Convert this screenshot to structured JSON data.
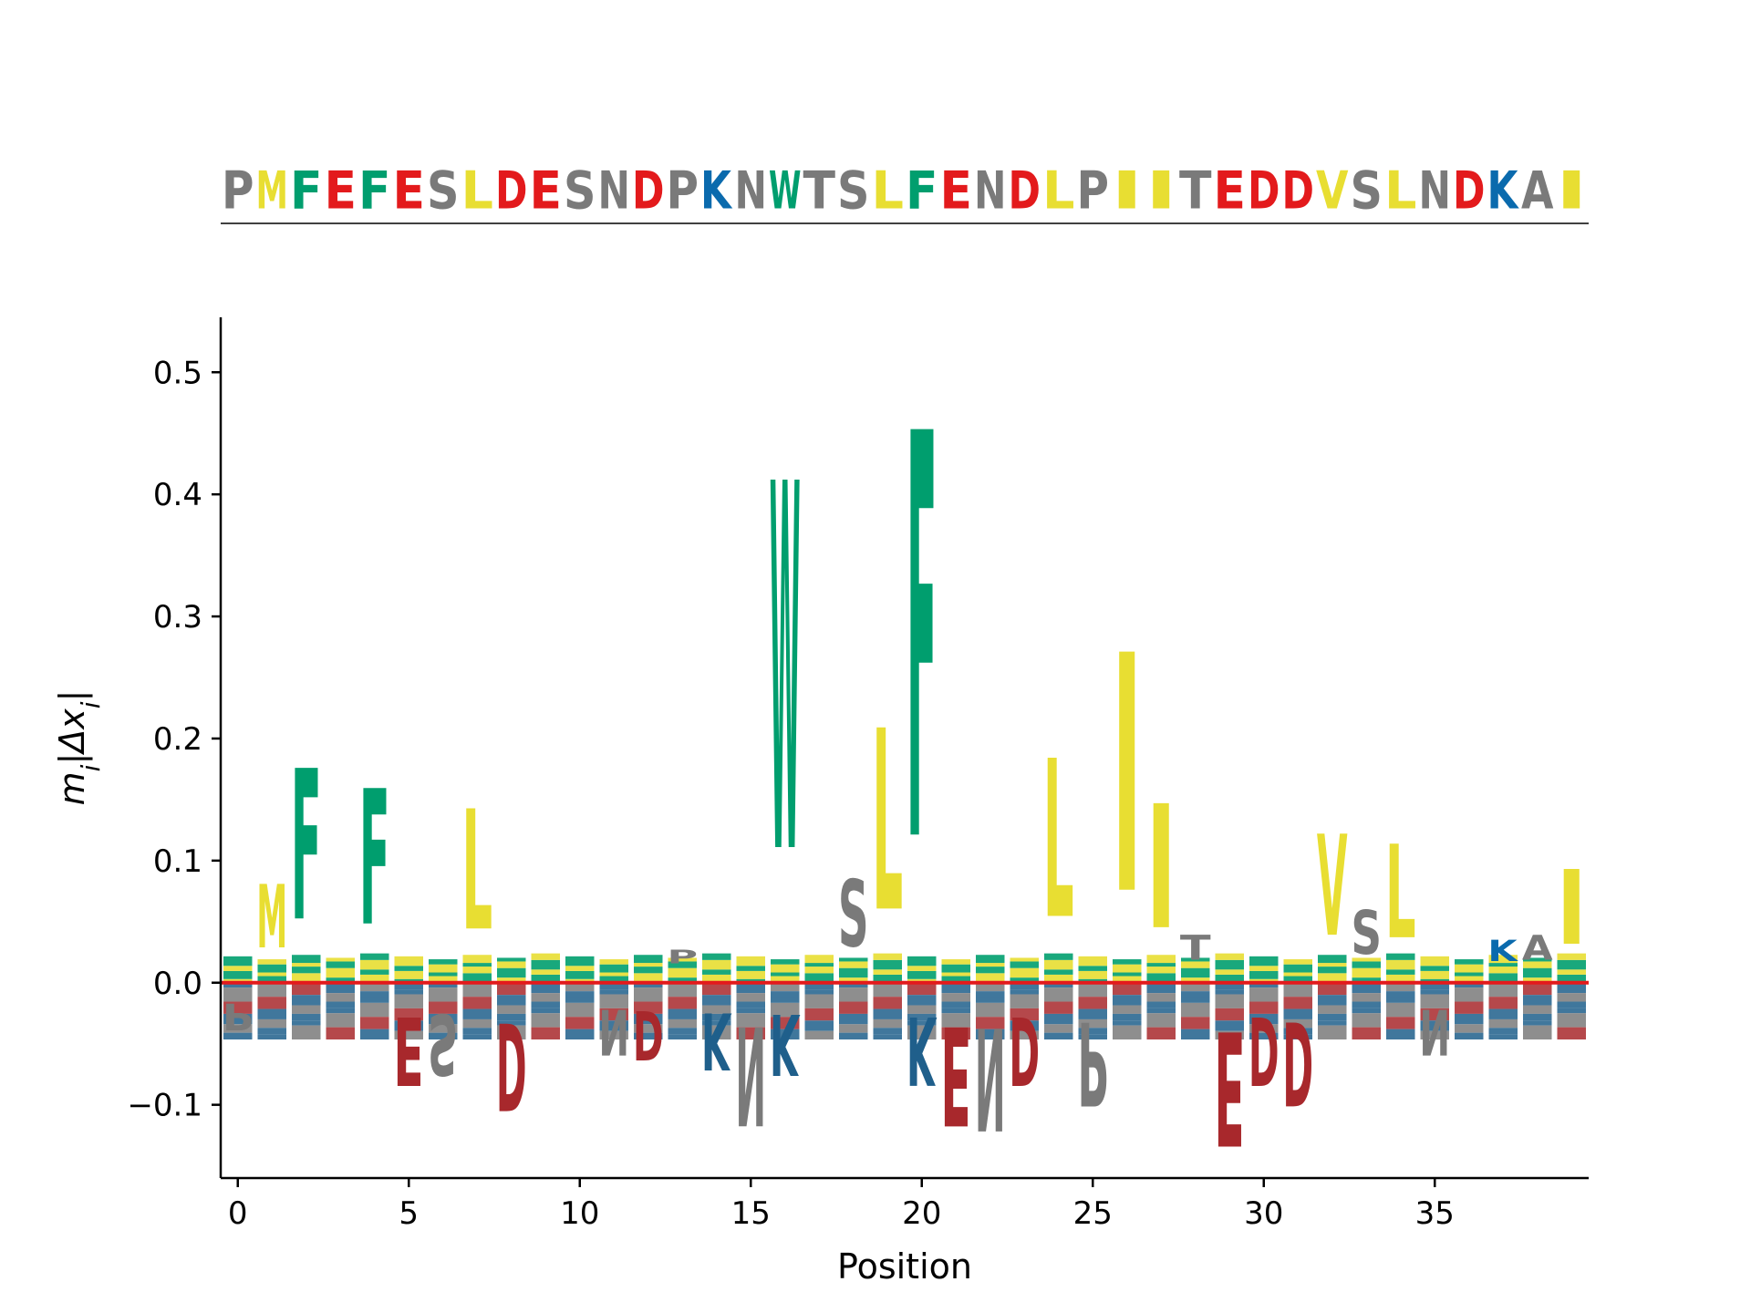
{
  "colors": {
    "hydrophobic": "#e8de32",
    "aromatic": "#009e6e",
    "acidic": "#e31a1c",
    "acidic_dark": "#a8282c",
    "basic": "#0a6aad",
    "basic_dark": "#1f5f8b",
    "other": "#7a7a7a",
    "baseline": "#e31a1c"
  },
  "chart_data": [
    {
      "type": "sequence_logo_wildtype",
      "sequence": "PMFEFESLDESNDPKNWTSLFENDLPIITEDDVSLNDKAI",
      "letter_colors": {
        "P": "other",
        "M": "hydrophobic",
        "F": "aromatic",
        "E": "acidic",
        "S": "other",
        "L": "hydrophobic",
        "D": "acidic",
        "N": "other",
        "K": "basic",
        "W": "aromatic",
        "T": "other",
        "I": "hydrophobic",
        "V": "hydrophobic",
        "A": "other"
      }
    },
    {
      "type": "sequence_logo",
      "xlabel": "Position",
      "ylabel": "m_i|Δx_i|",
      "xlim": [
        -0.5,
        39.5
      ],
      "ylim": [
        -0.16,
        0.545
      ],
      "xticks": [
        0,
        5,
        10,
        15,
        20,
        25,
        30,
        35
      ],
      "yticks": [
        -0.1,
        0.0,
        0.1,
        0.2,
        0.3,
        0.4,
        0.5
      ],
      "ytick_labels": [
        "−0.1",
        "0.0",
        "0.1",
        "0.2",
        "0.3",
        "0.4",
        "0.5"
      ],
      "positive": [
        {
          "position": 1,
          "letter": "M",
          "value": 0.095
        },
        {
          "position": 2,
          "letter": "F",
          "value": 0.21
        },
        {
          "position": 4,
          "letter": "F",
          "value": 0.19
        },
        {
          "position": 7,
          "letter": "L",
          "value": 0.17
        },
        {
          "position": 13,
          "letter": "P",
          "value": 0.03
        },
        {
          "position": 16,
          "letter": "W",
          "value": 0.495
        },
        {
          "position": 18,
          "letter": "S",
          "value": 0.1
        },
        {
          "position": 19,
          "letter": "L",
          "value": 0.25
        },
        {
          "position": 20,
          "letter": "F",
          "value": 0.545
        },
        {
          "position": 24,
          "letter": "L",
          "value": 0.22
        },
        {
          "position": 26,
          "letter": "I",
          "value": 0.325
        },
        {
          "position": 27,
          "letter": "I",
          "value": 0.175
        },
        {
          "position": 28,
          "letter": "T",
          "value": 0.045
        },
        {
          "position": 32,
          "letter": "V",
          "value": 0.145
        },
        {
          "position": 33,
          "letter": "S",
          "value": 0.07
        },
        {
          "position": 34,
          "letter": "L",
          "value": 0.135
        },
        {
          "position": 37,
          "letter": "K",
          "value": 0.04
        },
        {
          "position": 38,
          "letter": "A",
          "value": 0.045
        },
        {
          "position": 39,
          "letter": "I",
          "value": 0.11
        }
      ],
      "negative": [
        {
          "position": 0,
          "letter": "P",
          "value": -0.045
        },
        {
          "position": 5,
          "letter": "E",
          "value": -0.1
        },
        {
          "position": 6,
          "letter": "S",
          "value": -0.09
        },
        {
          "position": 8,
          "letter": "D",
          "value": -0.125
        },
        {
          "position": 11,
          "letter": "N",
          "value": -0.07
        },
        {
          "position": 12,
          "letter": "D",
          "value": -0.075
        },
        {
          "position": 14,
          "letter": "K",
          "value": -0.085
        },
        {
          "position": 15,
          "letter": "N",
          "value": -0.14
        },
        {
          "position": 16,
          "letter": "K",
          "value": -0.09
        },
        {
          "position": 20,
          "letter": "K",
          "value": -0.1
        },
        {
          "position": 21,
          "letter": "E",
          "value": -0.14
        },
        {
          "position": 22,
          "letter": "N",
          "value": -0.145
        },
        {
          "position": 23,
          "letter": "D",
          "value": -0.1
        },
        {
          "position": 25,
          "letter": "P",
          "value": -0.12
        },
        {
          "position": 29,
          "letter": "E",
          "value": -0.16
        },
        {
          "position": 30,
          "letter": "D",
          "value": -0.1
        },
        {
          "position": 31,
          "letter": "D",
          "value": -0.12
        },
        {
          "position": 35,
          "letter": "N",
          "value": -0.07
        }
      ]
    }
  ]
}
